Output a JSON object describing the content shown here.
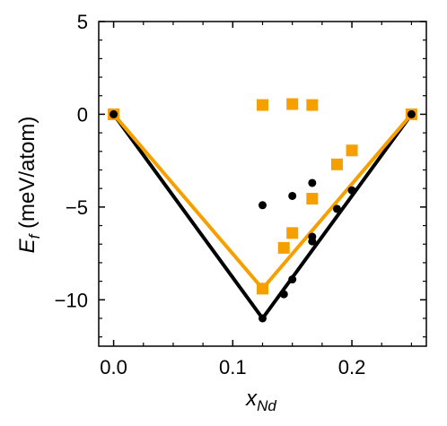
{
  "chart_data": {
    "type": "scatter",
    "xlabel_main": "x",
    "xlabel_sub": "Nd",
    "ylabel_main": "E",
    "ylabel_sub": "f",
    "ylabel_units": " (meV/atom)",
    "xlim": [
      -0.0125,
      0.2625
    ],
    "ylim": [
      -12.5,
      5
    ],
    "x_ticks": [
      0.0,
      0.1,
      0.2
    ],
    "x_tick_labels": [
      "0.0",
      "0.1",
      "0.2"
    ],
    "y_ticks": [
      5,
      0,
      -5,
      -10
    ],
    "y_tick_labels": [
      "5",
      "0",
      "−5",
      "−10"
    ],
    "x_minor_step": 0.025,
    "y_minor_step": 1,
    "grid": false,
    "series": [
      {
        "color": "#000000",
        "marker": "circle",
        "hull": [
          [
            0.0,
            0.0
          ],
          [
            0.125,
            -11.0
          ],
          [
            0.25,
            0.0
          ]
        ],
        "points": [
          [
            0.0,
            0.0
          ],
          [
            0.125,
            -11.0
          ],
          [
            0.125,
            -4.9
          ],
          [
            0.1429,
            -9.7
          ],
          [
            0.15,
            -8.9
          ],
          [
            0.15,
            -4.4
          ],
          [
            0.1667,
            -6.6
          ],
          [
            0.1667,
            -6.85
          ],
          [
            0.1667,
            -3.7
          ],
          [
            0.1875,
            -5.1
          ],
          [
            0.2,
            -4.1
          ],
          [
            0.25,
            0.0
          ]
        ]
      },
      {
        "color": "#f5a000",
        "marker": "square",
        "hull": [
          [
            0.0,
            0.0
          ],
          [
            0.125,
            -9.4
          ],
          [
            0.25,
            0.0
          ]
        ],
        "points": [
          [
            0.0,
            0.0
          ],
          [
            0.125,
            -9.4
          ],
          [
            0.125,
            0.5
          ],
          [
            0.1429,
            -7.2
          ],
          [
            0.15,
            -6.4
          ],
          [
            0.15,
            0.55
          ],
          [
            0.1667,
            -4.55
          ],
          [
            0.1667,
            0.5
          ],
          [
            0.1875,
            -2.7
          ],
          [
            0.2,
            -1.95
          ],
          [
            0.25,
            0.0
          ]
        ]
      }
    ]
  }
}
